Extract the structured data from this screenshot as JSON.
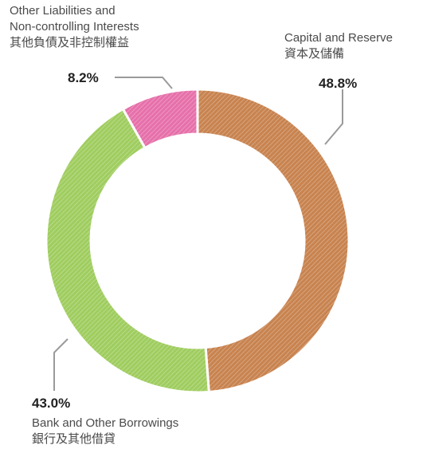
{
  "chart_data": {
    "type": "donut",
    "categories": [
      [
        "Capital and Reserve",
        "資本及儲備"
      ],
      [
        "Bank and Other Borrowings",
        "銀行及其他借貸"
      ],
      [
        "Other Liabilities and",
        "Non-controlling Interests",
        "其他負債及非控制權益"
      ]
    ],
    "values": [
      48.8,
      43.0,
      8.2
    ],
    "value_labels": [
      "48.8%",
      "43.0%",
      "8.2%"
    ],
    "colors": [
      "#c8834f",
      "#9fcd5f",
      "#e670aa"
    ]
  }
}
